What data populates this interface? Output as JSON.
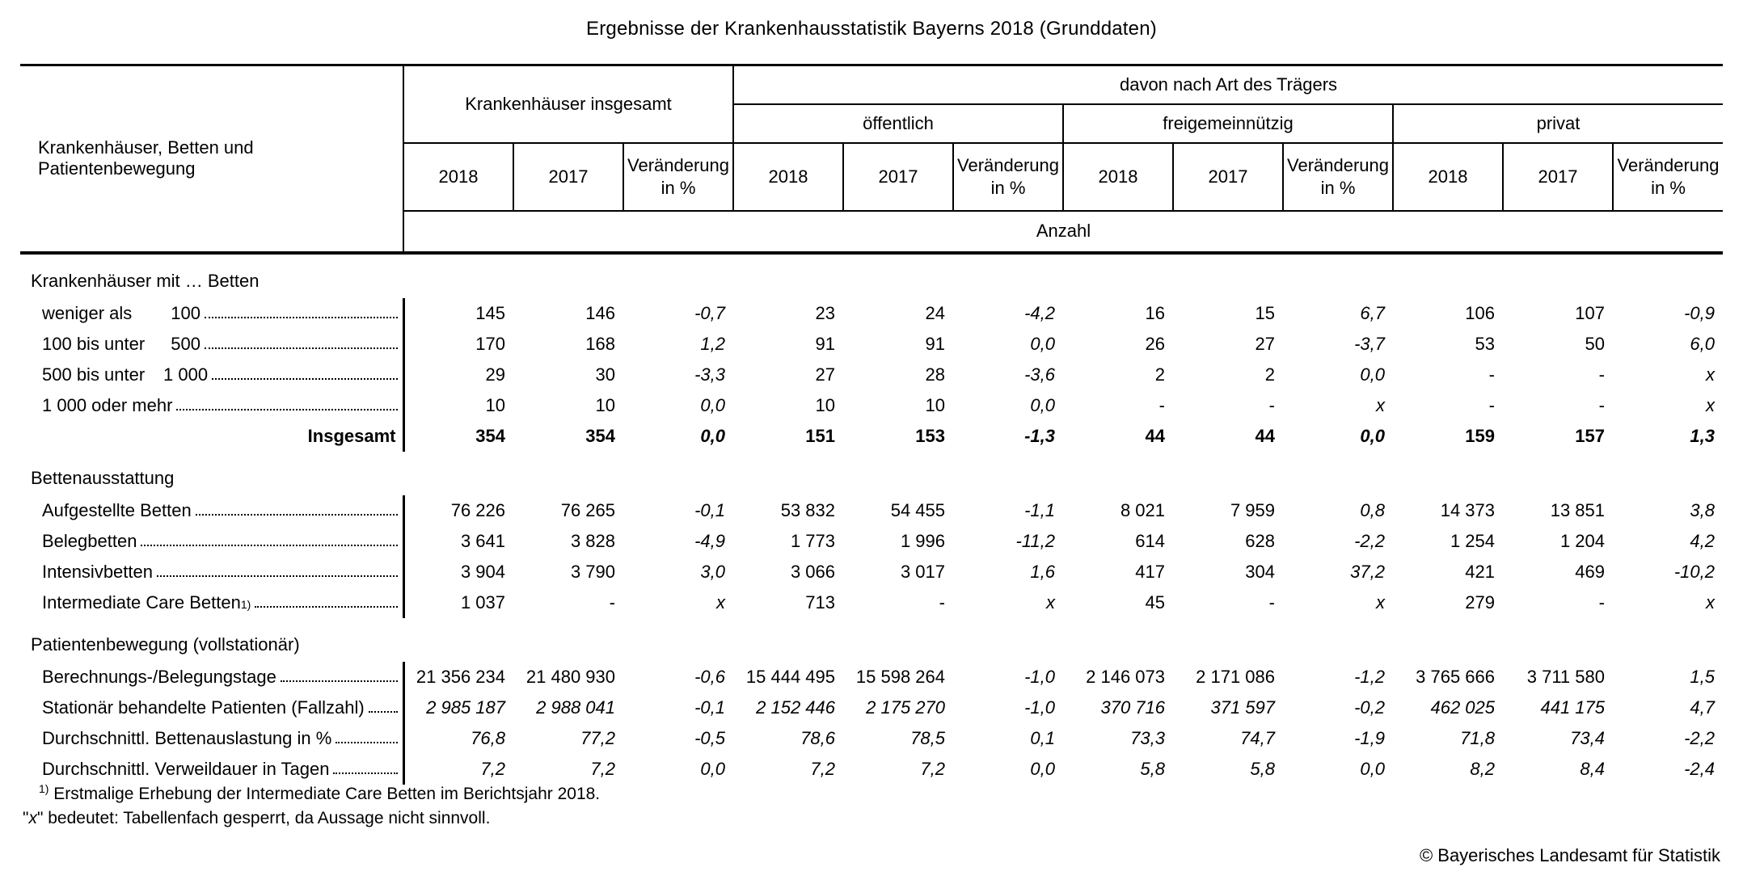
{
  "title": "Ergebnisse der Krankenhausstatistik Bayerns 2018 (Grunddaten)",
  "colors": {
    "text": "#000000",
    "background": "#ffffff",
    "rule": "#000000"
  },
  "table": {
    "stub_header": "Krankenhäuser, Betten und Patientenbewegung",
    "group_total": "Krankenhäuser insgesamt",
    "group_carrier": "davon nach Art des Trägers",
    "subgroups": [
      "öffentlich",
      "freigemeinnützig",
      "privat"
    ],
    "columns": [
      "2018",
      "2017",
      "Veränderung\nin %",
      "2018",
      "2017",
      "Veränderung\nin %",
      "2018",
      "2017",
      "Veränderung\nin %",
      "2018",
      "2017",
      "Veränderung\nin %"
    ],
    "unit_label": "Anzahl",
    "sections": [
      {
        "title": "Krankenhäuser mit … Betten",
        "rows": [
          {
            "prefix": "weniger als",
            "num": "100",
            "values": [
              "145",
              "146",
              "-0,7",
              "23",
              "24",
              "-4,2",
              "16",
              "15",
              "6,7",
              "106",
              "107",
              "-0,9"
            ]
          },
          {
            "prefix": "100 bis unter",
            "num": "500",
            "values": [
              "170",
              "168",
              "1,2",
              "91",
              "91",
              "0,0",
              "26",
              "27",
              "-3,7",
              "53",
              "50",
              "6,0"
            ]
          },
          {
            "prefix": "500 bis unter",
            "num": "1 000",
            "values": [
              "29",
              "30",
              "-3,3",
              "27",
              "28",
              "-3,6",
              "2",
              "2",
              "0,0",
              "-",
              "-",
              "x"
            ]
          },
          {
            "label": "1 000 oder mehr",
            "values": [
              "10",
              "10",
              "0,0",
              "10",
              "10",
              "0,0",
              "-",
              "-",
              "x",
              "-",
              "-",
              "x"
            ]
          },
          {
            "label": "Insgesamt",
            "total": true,
            "bold": true,
            "values": [
              "354",
              "354",
              "0,0",
              "151",
              "153",
              "-1,3",
              "44",
              "44",
              "0,0",
              "159",
              "157",
              "1,3"
            ]
          }
        ]
      },
      {
        "title": "Bettenausstattung",
        "rows": [
          {
            "label": "Aufgestellte Betten",
            "values": [
              "76 226",
              "76 265",
              "-0,1",
              "53 832",
              "54 455",
              "-1,1",
              "8 021",
              "7 959",
              "0,8",
              "14 373",
              "13 851",
              "3,8"
            ]
          },
          {
            "label": "Belegbetten",
            "values": [
              "3 641",
              "3 828",
              "-4,9",
              "1 773",
              "1 996",
              "-11,2",
              "614",
              "628",
              "-2,2",
              "1 254",
              "1 204",
              "4,2"
            ]
          },
          {
            "label": "Intensivbetten",
            "values": [
              "3 904",
              "3 790",
              "3,0",
              "3 066",
              "3 017",
              "1,6",
              "417",
              "304",
              "37,2",
              "421",
              "469",
              "-10,2"
            ]
          },
          {
            "label": "Intermediate Care Betten",
            "sup": "1)",
            "values": [
              "1 037",
              "-",
              "x",
              "713",
              "-",
              "x",
              "45",
              "-",
              "x",
              "279",
              "-",
              "x"
            ]
          }
        ]
      },
      {
        "title": "Patientenbewegung (vollstationär)",
        "rows": [
          {
            "label": "Berechnungs-/Belegungstage",
            "values": [
              "21 356 234",
              "21 480 930",
              "-0,6",
              "15 444 495",
              "15 598 264",
              "-1,0",
              "2 146 073",
              "2 171 086",
              "-1,2",
              "3 765 666",
              "3 711 580",
              "1,5"
            ]
          },
          {
            "label": "Stationär behandelte Patienten (Fallzahl)",
            "italic": true,
            "values": [
              "2 985 187",
              "2 988 041",
              "-0,1",
              "2 152 446",
              "2 175 270",
              "-1,0",
              "370 716",
              "371 597",
              "-0,2",
              "462 025",
              "441 175",
              "4,7"
            ]
          },
          {
            "label": "Durchschnittl. Bettenauslastung in %",
            "italic": true,
            "values": [
              "76,8",
              "77,2",
              "-0,5",
              "78,6",
              "78,5",
              "0,1",
              "73,3",
              "74,7",
              "-1,9",
              "71,8",
              "73,4",
              "-2,2"
            ]
          },
          {
            "label": "Durchschnittl. Verweildauer in Tagen",
            "italic": true,
            "values": [
              "7,2",
              "7,2",
              "0,0",
              "7,2",
              "7,2",
              "0,0",
              "5,8",
              "5,8",
              "0,0",
              "8,2",
              "8,4",
              "-2,4"
            ]
          }
        ]
      }
    ]
  },
  "footnotes": {
    "fn1_marker": "1)",
    "fn1_text": " Erstmalige Erhebung der Intermediate Care Betten im Berichtsjahr 2018.",
    "fn2_pre": "\"",
    "fn2_x": "x",
    "fn2_post": "\" bedeutet: Tabellenfach gesperrt, da Aussage nicht sinnvoll."
  },
  "copyright": "© Bayerisches Landesamt für Statistik"
}
